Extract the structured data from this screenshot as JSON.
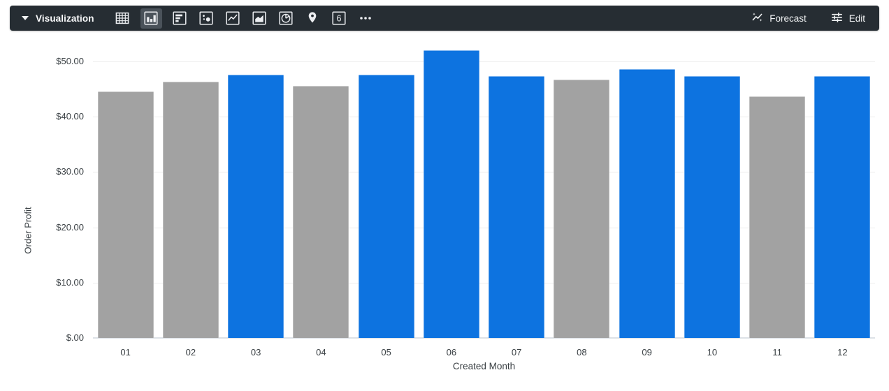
{
  "toolbar": {
    "title": "Visualization",
    "viz_types": [
      {
        "name": "table",
        "selected": false
      },
      {
        "name": "column-chart",
        "selected": true
      },
      {
        "name": "bar-chart",
        "selected": false
      },
      {
        "name": "scatter-plot",
        "selected": false
      },
      {
        "name": "line-chart",
        "selected": false
      },
      {
        "name": "area-chart",
        "selected": false
      },
      {
        "name": "pie-chart",
        "selected": false
      },
      {
        "name": "map",
        "selected": false
      },
      {
        "name": "single-value",
        "selected": false,
        "glyph": "6"
      },
      {
        "name": "more-options",
        "selected": false
      }
    ],
    "forecast_label": "Forecast",
    "edit_label": "Edit"
  },
  "chart_data": {
    "type": "bar",
    "title": "",
    "xlabel": "Created Month",
    "ylabel": "Order Profit",
    "categories": [
      "01",
      "02",
      "03",
      "04",
      "05",
      "06",
      "07",
      "08",
      "09",
      "10",
      "11",
      "12"
    ],
    "values": [
      44.6,
      46.4,
      47.6,
      45.6,
      47.6,
      52.0,
      47.3,
      46.7,
      48.6,
      47.3,
      43.7,
      47.3
    ],
    "bar_color_keys": [
      "muted",
      "muted",
      "primary",
      "muted",
      "primary",
      "primary",
      "primary",
      "muted",
      "primary",
      "primary",
      "muted",
      "primary"
    ],
    "colors": {
      "primary": "#0d73e0",
      "muted": "#a2a2a2"
    },
    "y_tick_values": [
      0,
      10,
      20,
      30,
      40,
      50
    ],
    "y_tick_labels": [
      "$.00",
      "$10.00",
      "$20.00",
      "$30.00",
      "$40.00",
      "$50.00"
    ],
    "ylim": [
      0,
      52
    ],
    "grid": true,
    "legend": "none"
  }
}
